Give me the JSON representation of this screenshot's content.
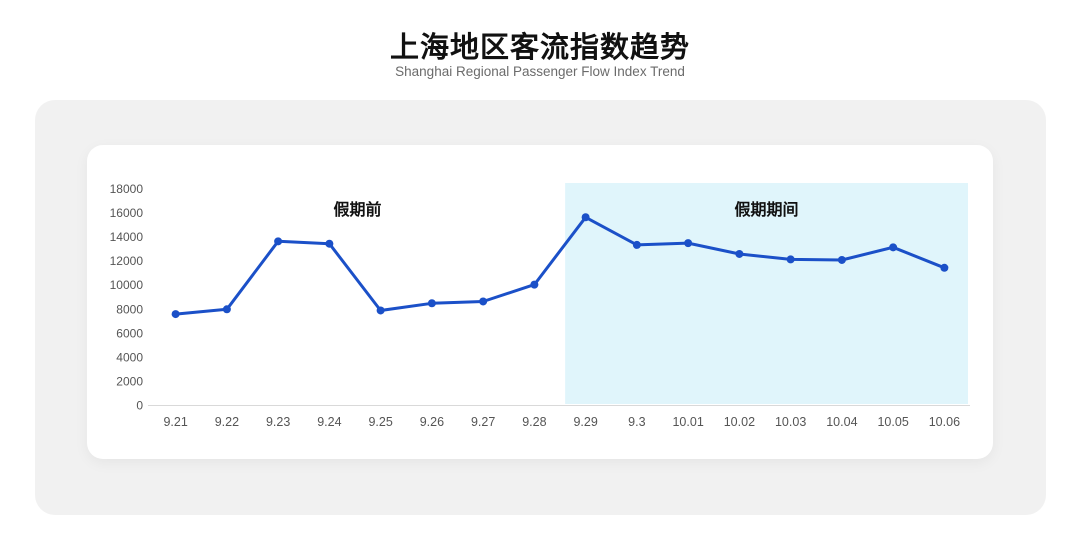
{
  "page": {
    "title": "上海地区客流指数趋势",
    "subtitle": "Shanghai Regional Passenger Flow Index Trend"
  },
  "chart_data": {
    "type": "line",
    "title": "上海地区客流指数趋势",
    "subtitle": "Shanghai Regional Passenger Flow Index Trend",
    "categories": [
      "9.21",
      "9.22",
      "9.23",
      "9.24",
      "9.25",
      "9.26",
      "9.27",
      "9.28",
      "9.29",
      "9.3",
      "10.01",
      "10.02",
      "10.03",
      "10.04",
      "10.05",
      "10.06"
    ],
    "values": [
      7600,
      8000,
      13650,
      13450,
      7900,
      8500,
      8650,
      10050,
      15650,
      13350,
      13500,
      12600,
      12150,
      12100,
      13150,
      11450
    ],
    "xlabel": "",
    "ylabel": "",
    "ylim": [
      0,
      18000
    ],
    "y_tick_step": 2000,
    "grid": false,
    "legend": "none",
    "annotations": [
      {
        "id": "pre-holiday",
        "label": "假期前"
      },
      {
        "id": "holiday",
        "label": "假期期间"
      }
    ],
    "highlight_region": {
      "label": "假期期间",
      "from_category": "9.29",
      "to_category": "10.06",
      "color": "#e0f5fb"
    },
    "colors": {
      "line": "#1b50c8",
      "marker": "#1b50c8",
      "holiday_band": "#e0f5fb",
      "axis_line": "#d9d9d9",
      "tick_label": "#555555",
      "region_label": "#111111",
      "panel_bg": "#f1f1f1",
      "card_bg": "#ffffff"
    }
  }
}
